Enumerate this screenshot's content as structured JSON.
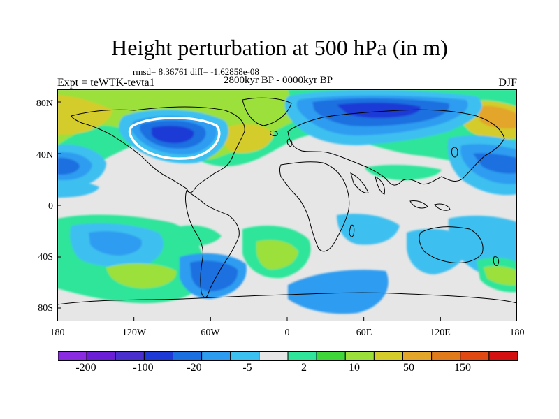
{
  "title": "Height perturbation at 500 hPa (in m)",
  "stats": "rmsd= 8.36761 diff= -1.62858e-08",
  "period": "2800kyr BP - 0000kyr BP",
  "experiment": "Expt = teWTK-tevta1",
  "season": "DJF",
  "lat_ticks": [
    "80N",
    "40N",
    "0",
    "40S",
    "80S"
  ],
  "lon_ticks": [
    "180",
    "120W",
    "60W",
    "0",
    "60E",
    "120E",
    "180"
  ],
  "colorbar": {
    "colors": [
      "#8a2be2",
      "#6a1fd6",
      "#4a2fcf",
      "#1e3ad6",
      "#1c6fe0",
      "#2d9cf0",
      "#3cc0f0",
      "#e6e6e6",
      "#2ee59a",
      "#3fd63a",
      "#9be03a",
      "#d4cc2a",
      "#e3a52a",
      "#e07a1a",
      "#e04a12",
      "#d41010"
    ],
    "labels": [
      "-200",
      "-100",
      "-20",
      "-5",
      "2",
      "10",
      "50",
      "150"
    ]
  },
  "colors": {
    "land_outline": "#000000",
    "neutral_fill": "#e6e6e6",
    "zero_contour": "#ffffff"
  }
}
